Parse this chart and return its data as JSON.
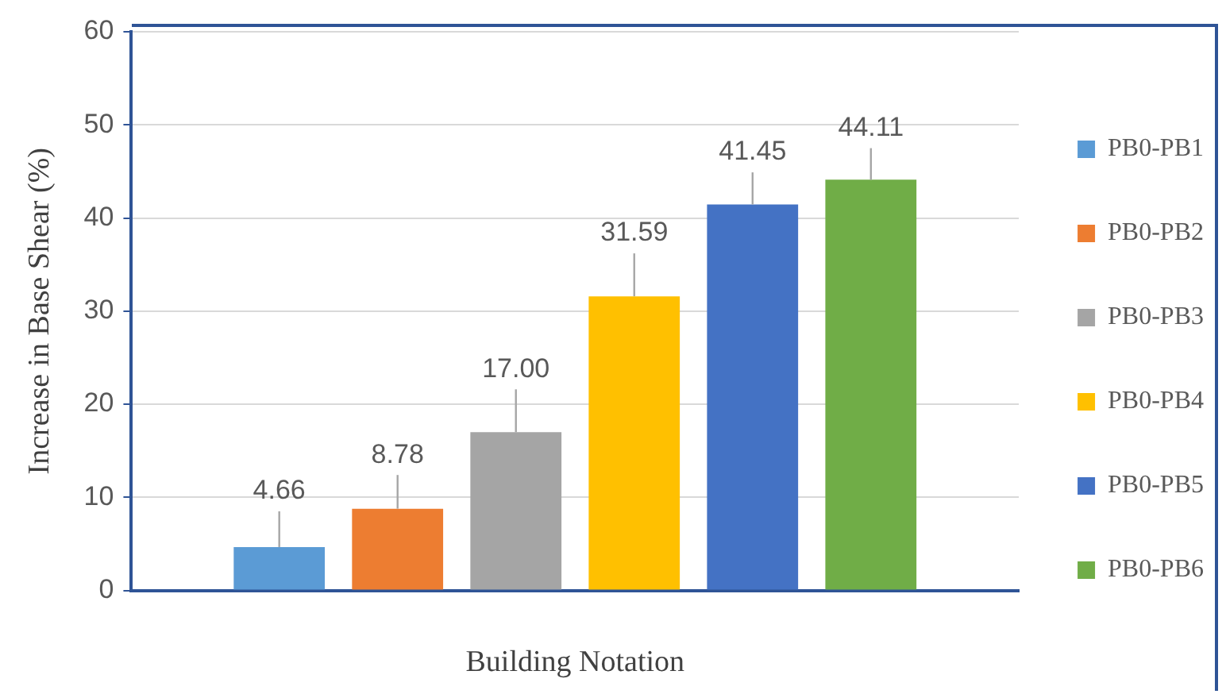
{
  "chart_data": {
    "type": "bar",
    "xlabel": "Building Notation",
    "ylabel": "Increase in Base Shear (%)",
    "categories": [
      null
    ],
    "series": [
      {
        "name": "PB0-PB1",
        "color": "#5b9bd5",
        "values": [
          4.66
        ],
        "value_labels": [
          "4.66"
        ],
        "errors": [
          [
            4.66,
            8.5
          ]
        ]
      },
      {
        "name": "PB0-PB2",
        "color": "#ed7d31",
        "values": [
          8.78
        ],
        "value_labels": [
          "8.78"
        ],
        "errors": [
          [
            8.78,
            12.4
          ]
        ]
      },
      {
        "name": "PB0-PB3",
        "color": "#a5a5a5",
        "values": [
          17.0
        ],
        "value_labels": [
          "17.00"
        ],
        "errors": [
          [
            17.0,
            21.6
          ]
        ]
      },
      {
        "name": "PB0-PB4",
        "color": "#ffc000",
        "values": [
          31.59
        ],
        "value_labels": [
          "31.59"
        ],
        "errors": [
          [
            31.59,
            36.2
          ]
        ]
      },
      {
        "name": "PB0-PB5",
        "color": "#4472c4",
        "values": [
          41.45
        ],
        "value_labels": [
          "41.45"
        ],
        "errors": [
          [
            41.45,
            44.9
          ]
        ]
      },
      {
        "name": "PB0-PB6",
        "color": "#70ad47",
        "values": [
          44.11
        ],
        "value_labels": [
          "44.11"
        ],
        "errors": [
          [
            44.11,
            47.5
          ]
        ]
      }
    ],
    "ylim": [
      0,
      60
    ],
    "yticks": [
      0,
      10,
      20,
      30,
      40,
      50,
      60
    ],
    "grid": "y",
    "legend": "right"
  }
}
